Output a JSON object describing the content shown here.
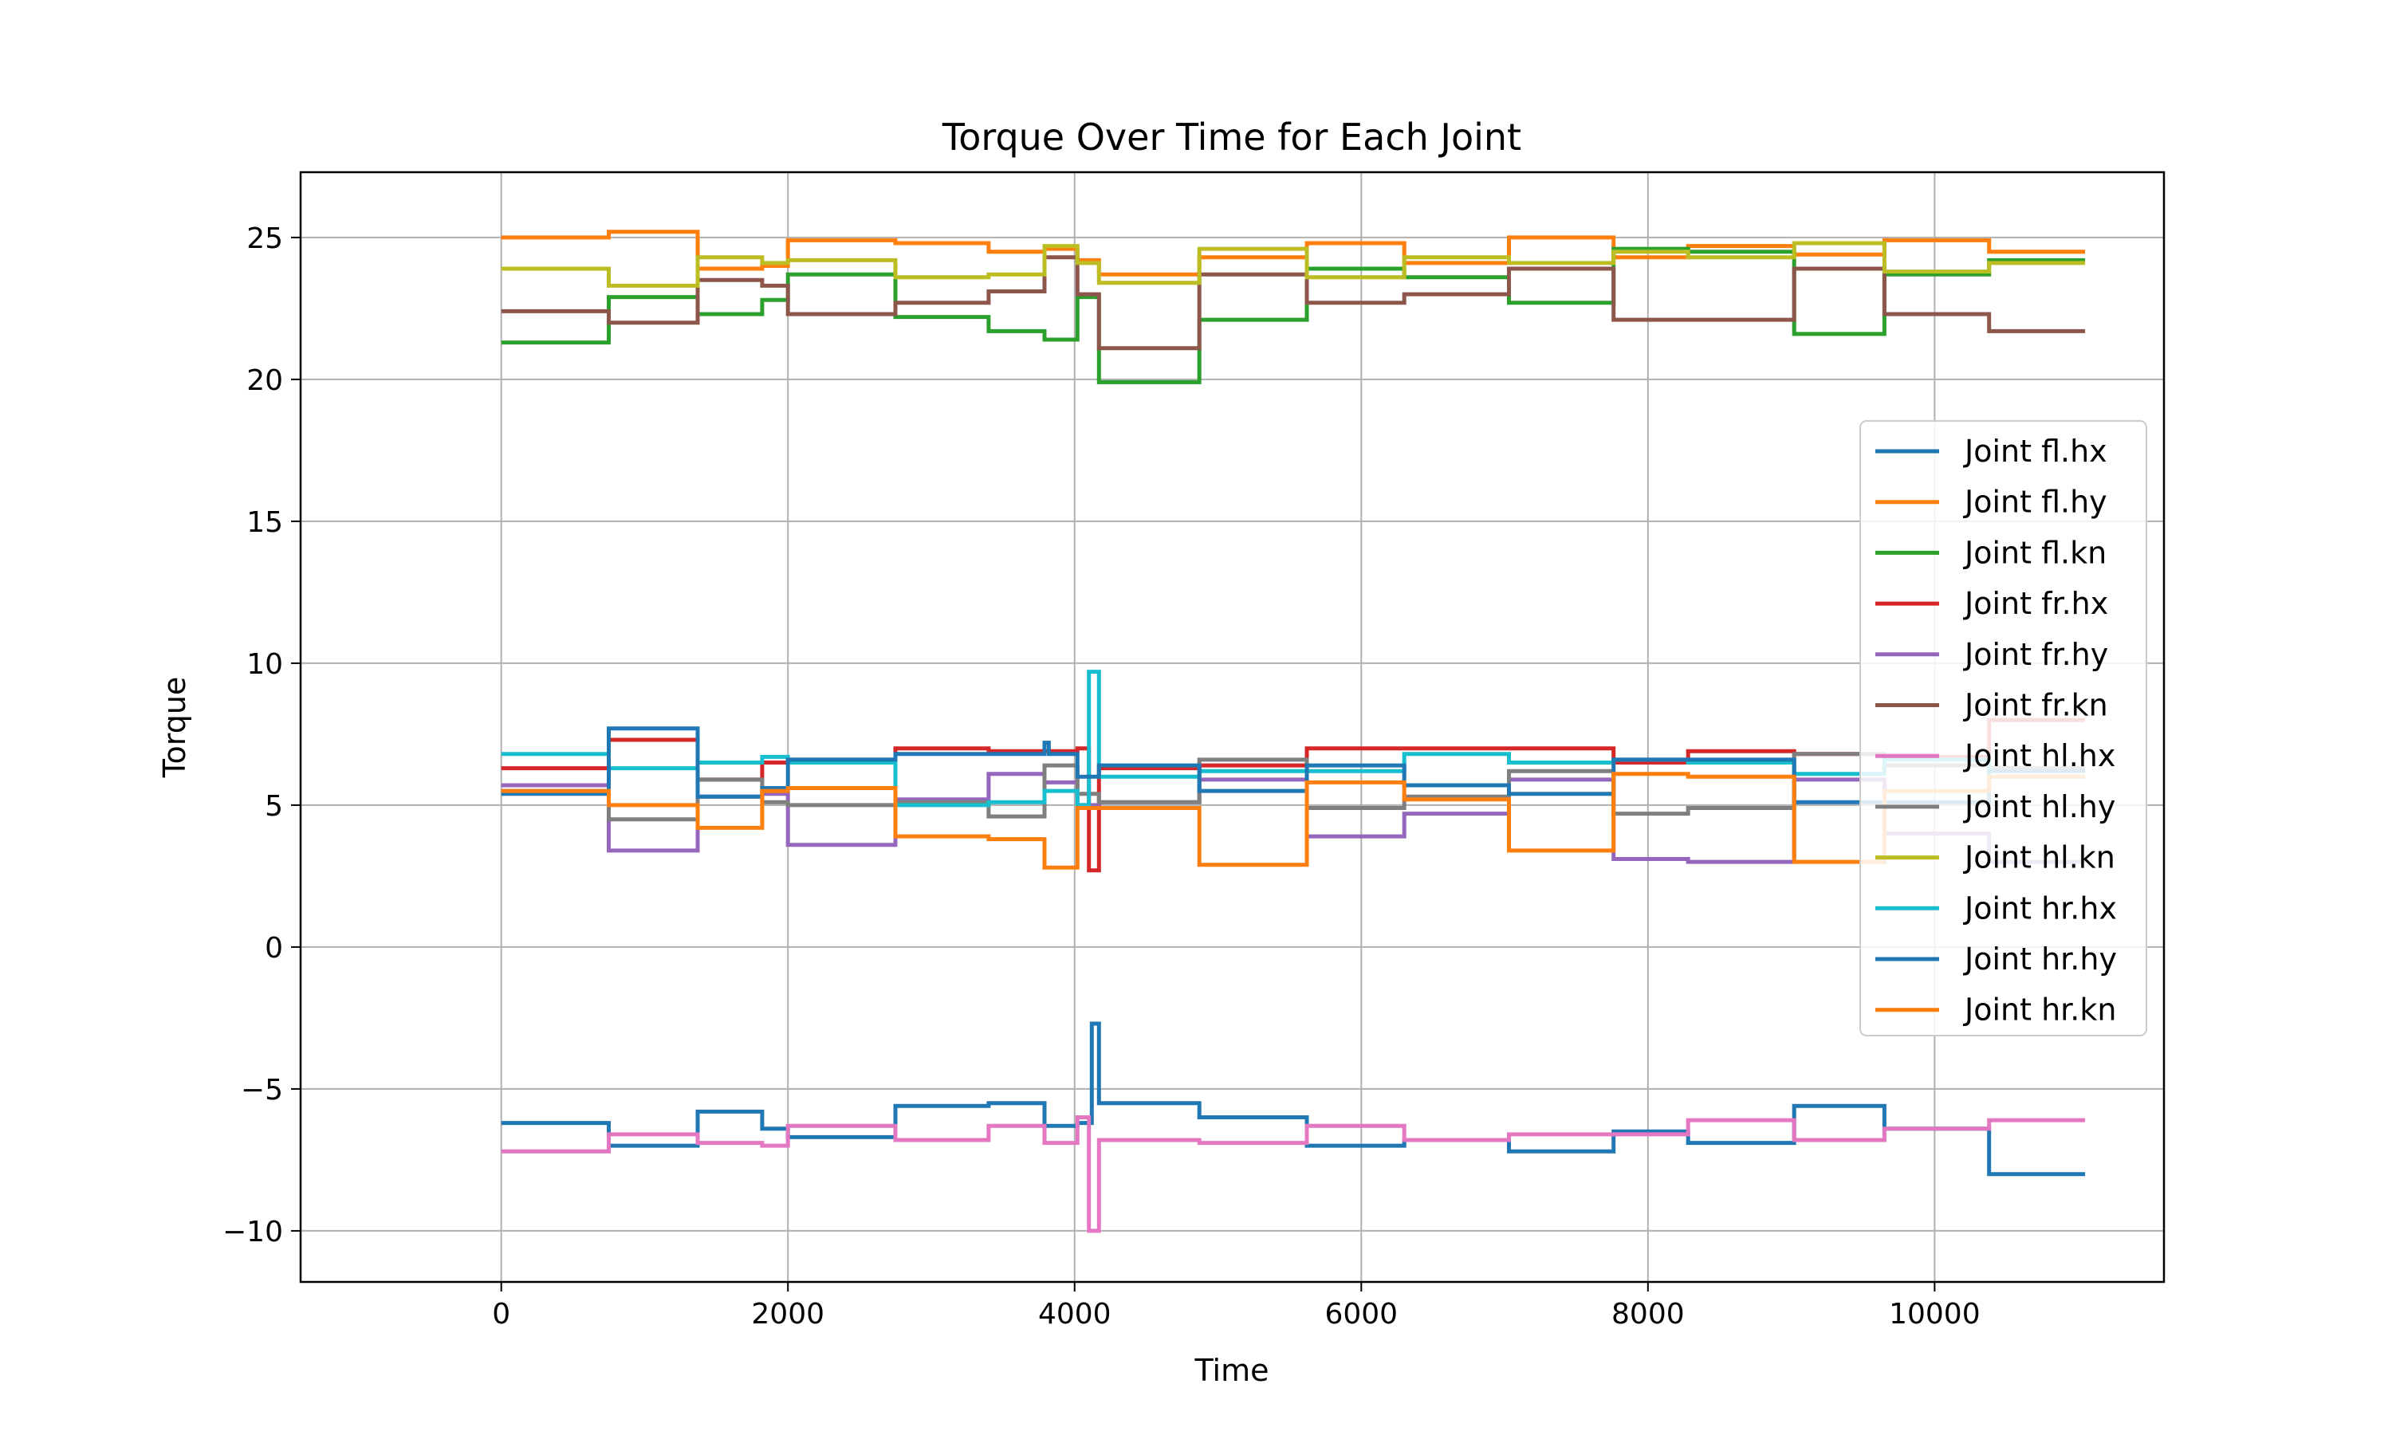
{
  "chart_data": {
    "type": "line",
    "title": "Torque Over Time for Each Joint",
    "xlabel": "Time",
    "ylabel": "Torque",
    "xlim": [
      -1400,
      11600
    ],
    "ylim": [
      -11.8,
      27.3
    ],
    "x_ticks": [
      0,
      2000,
      4000,
      6000,
      8000,
      10000
    ],
    "x_tick_labels": [
      "0",
      "2000",
      "4000",
      "6000",
      "8000",
      "10000"
    ],
    "y_ticks": [
      -10,
      -5,
      0,
      5,
      10,
      15,
      20,
      25
    ],
    "y_tick_labels": [
      "−10",
      "−5",
      "0",
      "5",
      "10",
      "15",
      "20",
      "25"
    ],
    "grid": true,
    "legend_position": "right",
    "series": [
      {
        "name": "Joint fl.hx",
        "color": "#1f77b4",
        "x": [
          0,
          750,
          750,
          1370,
          1370,
          1820,
          1820,
          2000,
          2000,
          2750,
          2750,
          3400,
          3400,
          3790,
          3790,
          4020,
          4020,
          4120,
          4120,
          4170,
          4170,
          4870,
          4870,
          5620,
          5620,
          6300,
          6300,
          7030,
          7030,
          7760,
          7760,
          8280,
          8280,
          9020,
          9020,
          9650,
          9650,
          10380,
          10380,
          11050
        ],
        "y": [
          -6.2,
          -6.2,
          -7.0,
          -7.0,
          -5.8,
          -5.8,
          -6.4,
          -6.4,
          -6.7,
          -6.7,
          -5.6,
          -5.6,
          -5.5,
          -5.5,
          -6.3,
          -6.3,
          -6.2,
          -6.2,
          -2.7,
          -2.7,
          -5.5,
          -5.5,
          -6.0,
          -6.0,
          -7.0,
          -7.0,
          -6.8,
          -6.8,
          -7.2,
          -7.2,
          -6.5,
          -6.5,
          -6.9,
          -6.9,
          -5.6,
          -5.6,
          -6.4,
          -6.4,
          -8.0,
          -8.0
        ]
      },
      {
        "name": "Joint fl.hy",
        "color": "#ff7f0e",
        "x": [
          0,
          750,
          750,
          1370,
          1370,
          1820,
          1820,
          2000,
          2000,
          2750,
          2750,
          3400,
          3400,
          3790,
          3790,
          4020,
          4020,
          4170,
          4170,
          4870,
          4870,
          5620,
          5620,
          6300,
          6300,
          7030,
          7030,
          7760,
          7760,
          8280,
          8280,
          9020,
          9020,
          9650,
          9650,
          10380,
          10380,
          11050
        ],
        "y": [
          25.0,
          25.0,
          25.2,
          25.2,
          23.9,
          23.9,
          24.0,
          24.0,
          24.9,
          24.9,
          24.8,
          24.8,
          24.5,
          24.5,
          24.6,
          24.6,
          24.2,
          24.2,
          23.7,
          23.7,
          24.3,
          24.3,
          24.8,
          24.8,
          24.1,
          24.1,
          25.0,
          25.0,
          24.3,
          24.3,
          24.7,
          24.7,
          24.4,
          24.4,
          24.9,
          24.9,
          24.5,
          24.5
        ]
      },
      {
        "name": "Joint fl.kn",
        "color": "#2ca02c",
        "x": [
          0,
          750,
          750,
          1370,
          1370,
          1820,
          1820,
          2000,
          2000,
          2750,
          2750,
          3400,
          3400,
          3790,
          3790,
          4020,
          4020,
          4170,
          4170,
          4870,
          4870,
          5620,
          5620,
          6300,
          6300,
          7030,
          7030,
          7760,
          7760,
          8280,
          8280,
          9020,
          9020,
          9650,
          9650,
          10380,
          10380,
          11050
        ],
        "y": [
          21.3,
          21.3,
          22.9,
          22.9,
          22.3,
          22.3,
          22.8,
          22.8,
          23.7,
          23.7,
          22.2,
          22.2,
          21.7,
          21.7,
          21.4,
          21.4,
          22.9,
          22.9,
          19.9,
          19.9,
          22.1,
          22.1,
          23.9,
          23.9,
          23.6,
          23.6,
          22.7,
          22.7,
          24.6,
          24.6,
          24.5,
          24.5,
          21.6,
          21.6,
          23.7,
          23.7,
          24.2,
          24.2
        ]
      },
      {
        "name": "Joint fr.hx",
        "color": "#d62728",
        "x": [
          0,
          750,
          750,
          1370,
          1370,
          1820,
          1820,
          2000,
          2000,
          2750,
          2750,
          3400,
          3400,
          3790,
          3790,
          4020,
          4020,
          4100,
          4100,
          4170,
          4170,
          4870,
          4870,
          5620,
          5620,
          6300,
          6300,
          7030,
          7030,
          7760,
          7760,
          8280,
          8280,
          9020,
          9020,
          9650,
          9650,
          10380,
          10380,
          11050
        ],
        "y": [
          6.3,
          6.3,
          7.3,
          7.3,
          5.9,
          5.9,
          6.5,
          6.5,
          6.6,
          6.6,
          7.0,
          7.0,
          6.9,
          6.9,
          6.9,
          6.9,
          7.0,
          7.0,
          2.7,
          2.7,
          6.3,
          6.3,
          6.4,
          6.4,
          7.0,
          7.0,
          7.0,
          7.0,
          7.0,
          7.0,
          6.5,
          6.5,
          6.9,
          6.9,
          6.8,
          6.8,
          6.7,
          6.7,
          8.0,
          8.0
        ]
      },
      {
        "name": "Joint fr.hy",
        "color": "#9467bd",
        "x": [
          0,
          750,
          750,
          1370,
          1370,
          1820,
          1820,
          2000,
          2000,
          2750,
          2750,
          3400,
          3400,
          3790,
          3790,
          4020,
          4020,
          4170,
          4170,
          4870,
          4870,
          5620,
          5620,
          6300,
          6300,
          7030,
          7030,
          7760,
          7760,
          8280,
          8280,
          9020,
          9020,
          9650,
          9650,
          10380,
          10380,
          11050
        ],
        "y": [
          5.7,
          5.7,
          3.4,
          3.4,
          5.3,
          5.3,
          5.4,
          5.4,
          3.6,
          3.6,
          5.2,
          5.2,
          6.1,
          6.1,
          5.8,
          5.8,
          5.0,
          5.0,
          5.1,
          5.1,
          5.9,
          5.9,
          3.9,
          3.9,
          4.7,
          4.7,
          5.9,
          5.9,
          3.1,
          3.1,
          3.0,
          3.0,
          5.9,
          5.9,
          4.0,
          4.0,
          3.0,
          3.0
        ]
      },
      {
        "name": "Joint fr.kn",
        "color": "#8c564b",
        "x": [
          0,
          750,
          750,
          1370,
          1370,
          1820,
          1820,
          2000,
          2000,
          2750,
          2750,
          3400,
          3400,
          3790,
          3790,
          4020,
          4020,
          4170,
          4170,
          4870,
          4870,
          5620,
          5620,
          6300,
          6300,
          7030,
          7030,
          7760,
          7760,
          8280,
          8280,
          9020,
          9020,
          9650,
          9650,
          10380,
          10380,
          11050
        ],
        "y": [
          22.4,
          22.4,
          22.0,
          22.0,
          23.5,
          23.5,
          23.3,
          23.3,
          22.3,
          22.3,
          22.7,
          22.7,
          23.1,
          23.1,
          24.3,
          24.3,
          23.0,
          23.0,
          21.1,
          21.1,
          23.7,
          23.7,
          22.7,
          22.7,
          23.0,
          23.0,
          23.9,
          23.9,
          22.1,
          22.1,
          22.1,
          22.1,
          23.9,
          23.9,
          22.3,
          22.3,
          21.7,
          21.7
        ]
      },
      {
        "name": "Joint hl.hx",
        "color": "#e377c2",
        "x": [
          0,
          750,
          750,
          1370,
          1370,
          1820,
          1820,
          2000,
          2000,
          2750,
          2750,
          3400,
          3400,
          3790,
          3790,
          4020,
          4020,
          4100,
          4100,
          4170,
          4170,
          4870,
          4870,
          5620,
          5620,
          6300,
          6300,
          7030,
          7030,
          7760,
          7760,
          8280,
          8280,
          9020,
          9020,
          9650,
          9650,
          10380,
          10380,
          11050
        ],
        "y": [
          -7.2,
          -7.2,
          -6.6,
          -6.6,
          -6.9,
          -6.9,
          -7.0,
          -7.0,
          -6.3,
          -6.3,
          -6.8,
          -6.8,
          -6.3,
          -6.3,
          -6.9,
          -6.9,
          -6.0,
          -6.0,
          -10.0,
          -10.0,
          -6.8,
          -6.8,
          -6.9,
          -6.9,
          -6.3,
          -6.3,
          -6.8,
          -6.8,
          -6.6,
          -6.6,
          -6.6,
          -6.6,
          -6.1,
          -6.1,
          -6.8,
          -6.8,
          -6.4,
          -6.4,
          -6.1,
          -6.1
        ]
      },
      {
        "name": "Joint hl.hy",
        "color": "#7f7f7f",
        "x": [
          0,
          750,
          750,
          1370,
          1370,
          1820,
          1820,
          2000,
          2000,
          2750,
          2750,
          3400,
          3400,
          3790,
          3790,
          4020,
          4020,
          4170,
          4170,
          4870,
          4870,
          5620,
          5620,
          6300,
          6300,
          7030,
          7030,
          7760,
          7760,
          8280,
          8280,
          9020,
          9020,
          9650,
          9650,
          10380,
          10380,
          11050
        ],
        "y": [
          5.5,
          5.5,
          4.5,
          4.5,
          5.9,
          5.9,
          5.1,
          5.1,
          5.0,
          5.0,
          5.1,
          5.1,
          4.6,
          4.6,
          6.4,
          6.4,
          5.4,
          5.4,
          5.1,
          5.1,
          6.6,
          6.6,
          4.9,
          4.9,
          5.3,
          5.3,
          6.2,
          6.2,
          4.7,
          4.7,
          4.9,
          4.9,
          6.8,
          6.8,
          6.4,
          6.4,
          6.3,
          6.3
        ]
      },
      {
        "name": "Joint hl.kn",
        "color": "#bcbd22",
        "x": [
          0,
          750,
          750,
          1370,
          1370,
          1820,
          1820,
          2000,
          2000,
          2750,
          2750,
          3400,
          3400,
          3790,
          3790,
          4020,
          4020,
          4170,
          4170,
          4870,
          4870,
          5620,
          5620,
          6300,
          6300,
          7030,
          7030,
          7760,
          7760,
          8280,
          8280,
          9020,
          9020,
          9650,
          9650,
          10380,
          10380,
          11050
        ],
        "y": [
          23.9,
          23.9,
          23.3,
          23.3,
          24.3,
          24.3,
          24.1,
          24.1,
          24.2,
          24.2,
          23.6,
          23.6,
          23.7,
          23.7,
          24.7,
          24.7,
          24.1,
          24.1,
          23.4,
          23.4,
          24.6,
          24.6,
          23.6,
          23.6,
          24.3,
          24.3,
          24.1,
          24.1,
          24.5,
          24.5,
          24.3,
          24.3,
          24.8,
          24.8,
          23.8,
          23.8,
          24.1,
          24.1
        ]
      },
      {
        "name": "Joint hr.hx",
        "color": "#17becf",
        "x": [
          0,
          750,
          750,
          1370,
          1370,
          1820,
          1820,
          2000,
          2000,
          2750,
          2750,
          3400,
          3400,
          3790,
          3790,
          4020,
          4020,
          4100,
          4100,
          4170,
          4170,
          4870,
          4870,
          5620,
          5620,
          6300,
          6300,
          7030,
          7030,
          7760,
          7760,
          8280,
          8280,
          9020,
          9020,
          9650,
          9650,
          10380,
          10380,
          11050
        ],
        "y": [
          6.8,
          6.8,
          6.3,
          6.3,
          6.5,
          6.5,
          6.7,
          6.7,
          6.5,
          6.5,
          5.0,
          5.0,
          5.1,
          5.1,
          5.5,
          5.5,
          5.0,
          5.0,
          9.7,
          9.7,
          6.0,
          6.0,
          6.2,
          6.2,
          6.2,
          6.2,
          6.8,
          6.8,
          6.5,
          6.5,
          6.6,
          6.6,
          6.5,
          6.5,
          6.1,
          6.1,
          6.6,
          6.6,
          6.0,
          6.0
        ]
      },
      {
        "name": "Joint hr.hy",
        "color": "#1f77b4",
        "x": [
          0,
          750,
          750,
          1370,
          1370,
          1820,
          1820,
          2000,
          2000,
          2750,
          2750,
          3400,
          3400,
          3790,
          3790,
          3820,
          3820,
          4020,
          4020,
          4170,
          4170,
          4870,
          4870,
          5620,
          5620,
          6300,
          6300,
          7030,
          7030,
          7760,
          7760,
          8280,
          8280,
          9020,
          9020,
          9650,
          9650,
          10380,
          10380,
          11050
        ],
        "y": [
          5.4,
          5.4,
          7.7,
          7.7,
          5.3,
          5.3,
          5.6,
          5.6,
          6.6,
          6.6,
          6.8,
          6.8,
          6.8,
          6.8,
          7.2,
          7.2,
          6.8,
          6.8,
          6.0,
          6.0,
          6.4,
          6.4,
          5.5,
          5.5,
          6.4,
          6.4,
          5.7,
          5.7,
          5.4,
          5.4,
          6.6,
          6.6,
          6.6,
          6.6,
          5.1,
          5.1,
          5.1,
          5.1,
          6.2,
          6.2
        ]
      },
      {
        "name": "Joint hr.kn",
        "color": "#ff7f0e",
        "x": [
          0,
          750,
          750,
          1370,
          1370,
          1820,
          1820,
          2000,
          2000,
          2750,
          2750,
          3400,
          3400,
          3790,
          3790,
          4020,
          4020,
          4170,
          4170,
          4870,
          4870,
          5620,
          5620,
          6300,
          6300,
          7030,
          7030,
          7760,
          7760,
          8280,
          8280,
          9020,
          9020,
          9650,
          9650,
          10380,
          10380,
          11050
        ],
        "y": [
          5.5,
          5.5,
          5.0,
          5.0,
          4.2,
          4.2,
          5.5,
          5.5,
          5.6,
          5.6,
          3.9,
          3.9,
          3.8,
          3.8,
          2.8,
          2.8,
          4.9,
          4.9,
          4.9,
          4.9,
          2.9,
          2.9,
          5.8,
          5.8,
          5.2,
          5.2,
          3.4,
          3.4,
          6.1,
          6.1,
          6.0,
          6.0,
          3.0,
          3.0,
          5.5,
          5.5,
          6.0,
          6.0
        ]
      }
    ]
  }
}
